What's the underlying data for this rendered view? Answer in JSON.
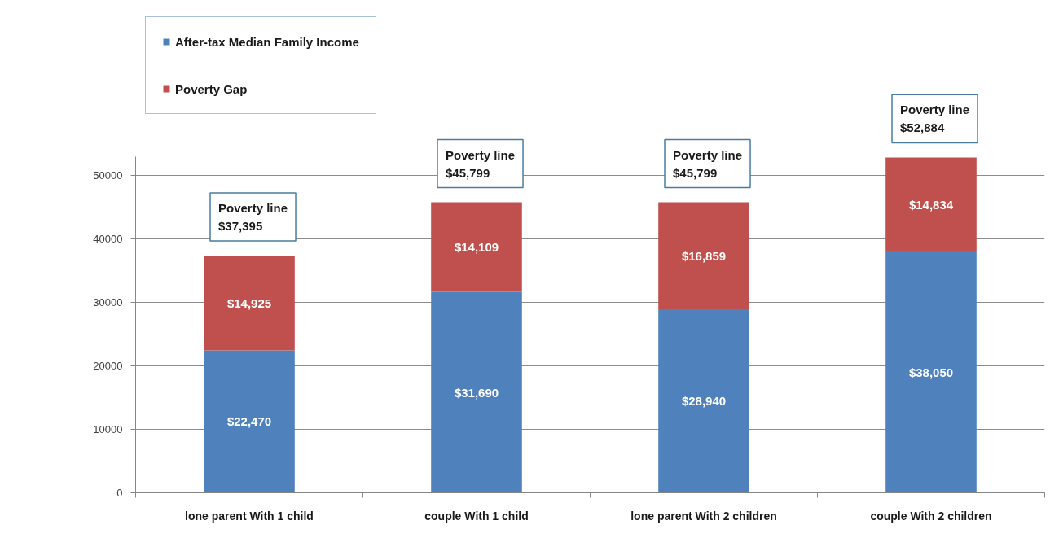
{
  "chart_data": {
    "type": "bar",
    "stacked": true,
    "categories": [
      "lone parent With 1 child",
      "couple With 1 child",
      "lone parent With 2 children",
      "couple With 2 children"
    ],
    "series": [
      {
        "name": "After-tax Median Family Income",
        "color": "#4f81bd",
        "values": [
          22470,
          31690,
          28940,
          38050
        ],
        "value_labels": [
          "$22,470",
          "$31,690",
          "$28,940",
          "$38,050"
        ]
      },
      {
        "name": "Poverty Gap",
        "color": "#c0504d",
        "values": [
          14925,
          14109,
          16859,
          14834
        ],
        "value_labels": [
          "$14,925",
          "$14,109",
          "$16,859",
          "$14,834"
        ]
      }
    ],
    "ylim": [
      0,
      53000
    ],
    "yticks": [
      0,
      10000,
      20000,
      30000,
      40000,
      50000
    ],
    "grid": "y",
    "legend": "top left",
    "annotations": [
      {
        "text": "Poverty line\n$37,395",
        "x": "lone parent With 1 child",
        "y": 37395
      },
      {
        "text": "Poverty line\n$45,799",
        "x": "couple With 1 child",
        "y": 45799
      },
      {
        "text": "Poverty line\n$45,799",
        "x": "lone parent With 2 children",
        "y": 45799
      },
      {
        "text": "Poverty line\n$52,884",
        "x": "couple With 2 children",
        "y": 52884
      }
    ]
  }
}
